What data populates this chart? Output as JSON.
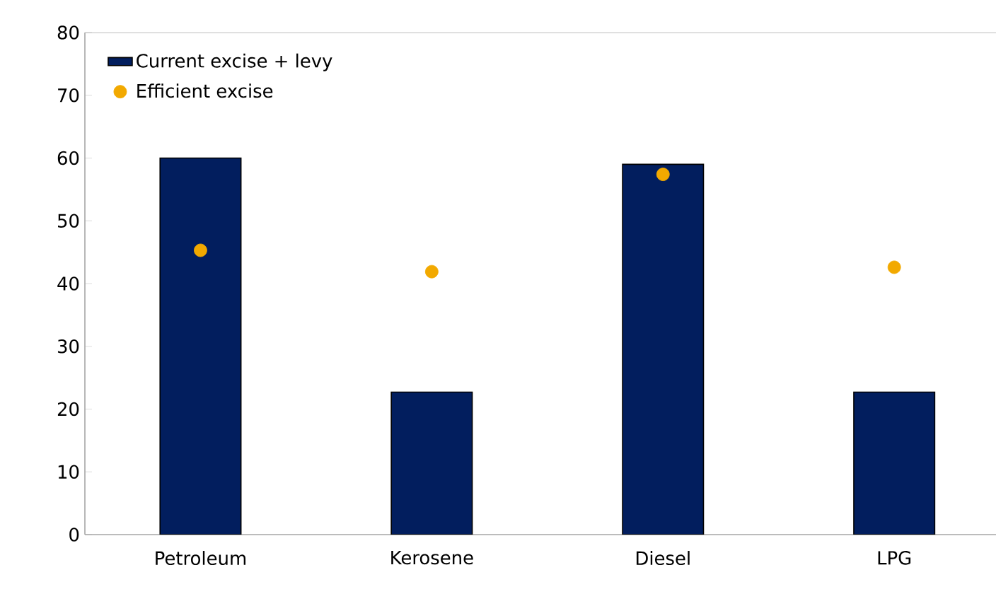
{
  "chart_data": {
    "type": "bar",
    "categories": [
      "Petroleum",
      "Kerosene",
      "Diesel",
      "LPG"
    ],
    "series": [
      {
        "name": "Current excise + levy",
        "color": "#021e5e",
        "values": [
          60,
          22.7,
          59,
          22.7
        ]
      },
      {
        "name": "Efficient excise",
        "type": "scatter",
        "color": "#f2a900",
        "marker": "circle",
        "values": [
          45.3,
          41.9,
          57.4,
          42.6
        ]
      }
    ],
    "ylim": [
      0,
      80
    ],
    "yticks": [
      0,
      10,
      20,
      30,
      40,
      50,
      60,
      70,
      80
    ],
    "grid": false,
    "legend": "top left"
  }
}
